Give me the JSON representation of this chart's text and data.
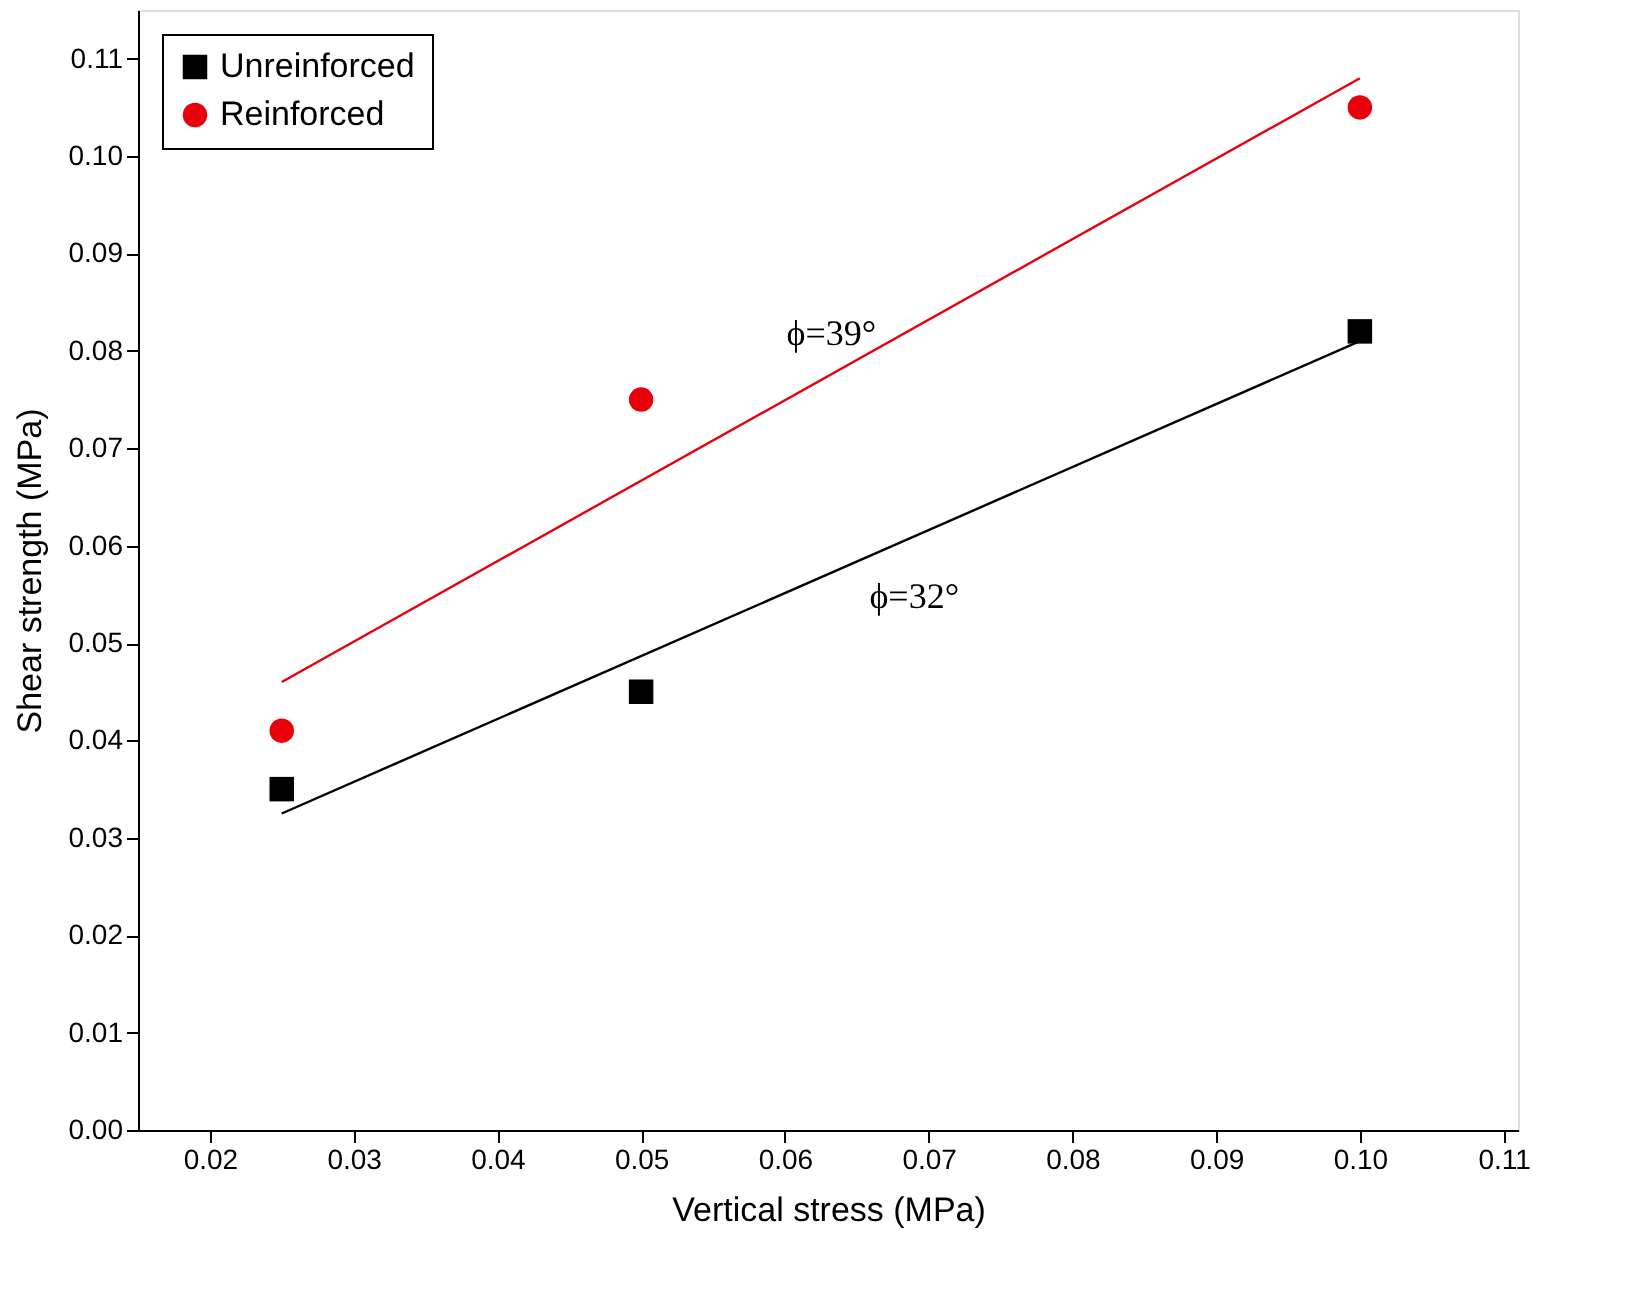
{
  "chart_data": {
    "type": "scatter",
    "xlabel": "Vertical stress (MPa)",
    "ylabel": "Shear strength (MPa)",
    "xlim": [
      0.015,
      0.111
    ],
    "xticks": [
      0.02,
      0.03,
      0.04,
      0.05,
      0.06,
      0.07,
      0.08,
      0.09,
      {
        "value": 0.1,
        "label": "0.10"
      },
      0.11
    ],
    "ylim": [
      0,
      0.115
    ],
    "yticks": [
      {
        "value": 0,
        "label": "0.00"
      },
      0.01,
      0.02,
      0.03,
      0.04,
      0.05,
      0.06,
      0.07,
      0.08,
      0.09,
      {
        "value": 0.1,
        "label": "0.10"
      },
      0.11
    ],
    "grid": false,
    "legend": "top left",
    "series": [
      {
        "name": "Unreinforced",
        "marker": "square",
        "color": "#000000",
        "x": [
          0.025,
          0.05,
          0.1
        ],
        "values": [
          0.035,
          0.045,
          0.082
        ]
      },
      {
        "name": "Reinforced",
        "marker": "circle",
        "color": "#e8000b",
        "x": [
          0.025,
          0.05,
          0.1
        ],
        "values": [
          0.041,
          0.075,
          0.105
        ]
      },
      {
        "type": "line",
        "line_style": "solid",
        "color": "#e8000b",
        "x": [
          0.025,
          0.1
        ],
        "values": [
          0.046,
          0.108
        ]
      },
      {
        "type": "line",
        "line_style": "solid",
        "color": "#000000",
        "x": [
          0.025,
          0.1
        ],
        "values": [
          0.0325,
          0.081
        ]
      }
    ],
    "annotations": [
      "ϕ=39°",
      "ϕ=32°"
    ]
  }
}
